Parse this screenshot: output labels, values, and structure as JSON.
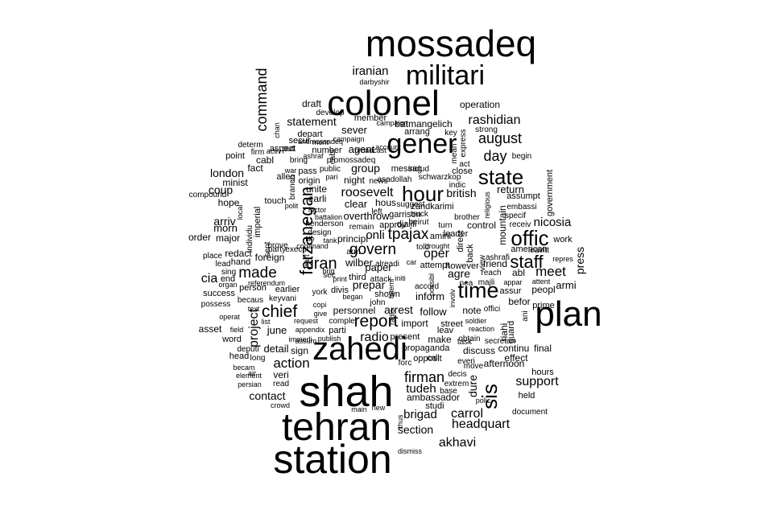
{
  "cloud": {
    "color": "#000000",
    "words": [
      "mossadeq",
      "militari",
      "colonel",
      "iranian",
      "darbyshir",
      "draft",
      "develop",
      "operation",
      "member",
      "rashidian",
      "batmangelich",
      "command",
      "statement",
      "chan",
      "secur",
      "ment",
      "campaign",
      "depart",
      "sever",
      "strong",
      "key",
      "gener",
      "august",
      "express",
      "day",
      "begin",
      "determ",
      "aspect",
      "number",
      "bring",
      "point",
      "firm",
      "agent",
      "promossadeq",
      "war",
      "pass",
      "ashraf",
      "public",
      "pari",
      "fact",
      "cabl",
      "london",
      "minist",
      "coup",
      "alleg",
      "origin",
      "branch",
      "unite",
      "news",
      "includ",
      "asadollah",
      "close",
      "schwarzkop",
      "state",
      "indic",
      "messag",
      "act",
      "mean",
      "night",
      "group",
      "zandkarimi",
      "hour",
      "roosevelt",
      "british",
      "return",
      "assumpt",
      "compound",
      "hope",
      "touch",
      "polit",
      "earli",
      "suggest",
      "clear",
      "hous",
      "left",
      "beirut",
      "truck",
      "garrison",
      "brother",
      "offic",
      "specif",
      "embassi",
      "receiv",
      "nicosia",
      "arriv",
      "morn",
      "major",
      "order",
      "factor",
      "battalion",
      "overthrow",
      "remain",
      "approv",
      "djalili",
      "turn",
      "amini",
      "leader",
      "control",
      "work",
      "prove",
      "design",
      "henderson",
      "file",
      "tank",
      "principl",
      "onli",
      "tpajax",
      "told",
      "brought",
      "american",
      "leavitt",
      "repres",
      "place",
      "redact",
      "hand",
      "party",
      "execut",
      "foreign",
      "arm",
      "wilber",
      "alreadi",
      "car",
      "govern",
      "oper",
      "ashrafi",
      "staff",
      "lead",
      "sing",
      "end",
      "cia",
      "organ",
      "referendum",
      "person",
      "made",
      "iran",
      "attempt",
      "however",
      "friend",
      "reach",
      "abl",
      "meet",
      "appar",
      "attent",
      "peopl",
      "armi",
      "success",
      "possess",
      "keyvani",
      "becaus",
      "earlier",
      "york",
      "divis",
      "third",
      "print",
      "attack",
      "prepar",
      "paper",
      "initi",
      "accord",
      "agre",
      "majli",
      "assur",
      "nea",
      "time",
      "befor",
      "prime",
      "chief",
      "copi",
      "inform",
      "operat",
      "text",
      "give",
      "request",
      "list",
      "field",
      "asset",
      "word",
      "june",
      "deputi",
      "long",
      "head",
      "immedi",
      "appendix",
      "parti",
      "complet",
      "report",
      "personnel",
      "arrest",
      "follow",
      "note",
      "offici",
      "riahi",
      "guard",
      "ani",
      "plan",
      "import",
      "street",
      "soldier",
      "reaction",
      "sis",
      "assum",
      "publish",
      "radio",
      "present",
      "leav",
      "make",
      "task",
      "secretari",
      "propaganda",
      "continu",
      "final",
      "discuss",
      "becam",
      "detail",
      "sign",
      "action",
      "zahedi",
      "veri",
      "decis",
      "afternoon",
      "effect",
      "move",
      "hours",
      "everi",
      "opposit",
      "obtain",
      "element",
      "persian",
      "read",
      "firman",
      "tudeh",
      "ambassador",
      "extrem",
      "support",
      "held",
      "polic",
      "dure",
      "contact",
      "shah",
      "brigad",
      "studi",
      "base",
      "carrol",
      "document",
      "crowd",
      "main",
      "new",
      "headquart",
      "tehran",
      "section",
      "akhavi",
      "dismiss",
      "station",
      "farzanegan",
      "press",
      "mountain",
      "government",
      "religious",
      "direct",
      "view",
      "back",
      "project",
      "forc",
      "radio",
      "thus",
      "fatemi",
      "possibl",
      "involv",
      "local",
      "individu",
      "imperial",
      "broadcast",
      "account",
      "campaign",
      "arrang",
      "john",
      "shown",
      "call",
      "put",
      "sent",
      "cabl",
      "sec",
      "brig",
      "command",
      "part",
      "began",
      "air",
      "activ",
      "antimossadeq",
      "element",
      "sec",
      "ment"
    ]
  }
}
